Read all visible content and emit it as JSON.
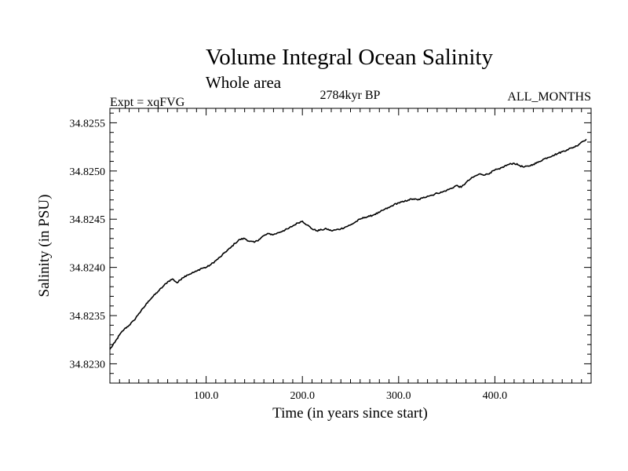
{
  "chart_data": {
    "type": "line",
    "title": "Volume Integral Ocean Salinity",
    "subtitle": "Whole area",
    "annotations": {
      "left": "Expt = xqFVG",
      "center": "2784kyr BP",
      "right": "ALL_MONTHS"
    },
    "xlabel": "Time (in years since start)",
    "ylabel": "Salinity (in PSU)",
    "xlim": [
      0,
      500
    ],
    "ylim": [
      34.8228,
      34.82565
    ],
    "x_tick_labels": [
      "100.0",
      "200.0",
      "300.0",
      "400.0"
    ],
    "x_tick_values": [
      100,
      200,
      300,
      400
    ],
    "y_tick_labels": [
      "34.8230",
      "34.8235",
      "34.8240",
      "34.8245",
      "34.8250",
      "34.8255"
    ],
    "y_tick_values": [
      34.823,
      34.8235,
      34.824,
      34.8245,
      34.825,
      34.8255
    ],
    "grid": false,
    "series": [
      {
        "name": "Salinity",
        "color": "#000000",
        "x": [
          0,
          5,
          10,
          15,
          20,
          25,
          30,
          35,
          40,
          45,
          50,
          55,
          60,
          65,
          70,
          75,
          80,
          85,
          90,
          95,
          100,
          105,
          110,
          115,
          120,
          125,
          130,
          135,
          140,
          145,
          150,
          155,
          160,
          165,
          170,
          175,
          180,
          185,
          190,
          195,
          200,
          205,
          210,
          215,
          220,
          225,
          230,
          235,
          240,
          245,
          250,
          255,
          260,
          265,
          270,
          275,
          280,
          285,
          290,
          295,
          300,
          305,
          310,
          315,
          320,
          325,
          330,
          335,
          340,
          345,
          350,
          355,
          360,
          365,
          370,
          375,
          380,
          385,
          390,
          395,
          400,
          405,
          410,
          415,
          420,
          425,
          430,
          435,
          440,
          445,
          450,
          455,
          460,
          465,
          470,
          475,
          480,
          485,
          490,
          495
        ],
        "y": [
          34.82315,
          34.82322,
          34.8233,
          34.82336,
          34.8234,
          34.82345,
          34.82352,
          34.82358,
          34.82365,
          34.8237,
          34.82375,
          34.8238,
          34.82385,
          34.82388,
          34.82384,
          34.82389,
          34.82392,
          34.82394,
          34.82396,
          34.82399,
          34.824,
          34.82403,
          34.82407,
          34.82411,
          34.82416,
          34.8242,
          34.82425,
          34.82429,
          34.8243,
          34.82427,
          34.82426,
          34.82429,
          34.82433,
          34.82435,
          34.82434,
          34.82436,
          34.82438,
          34.8244,
          34.82443,
          34.82446,
          34.82448,
          34.82444,
          34.8244,
          34.82438,
          34.82439,
          34.8244,
          34.82438,
          34.82439,
          34.8244,
          34.82442,
          34.82444,
          34.82447,
          34.8245,
          34.82452,
          34.82453,
          34.82455,
          34.82457,
          34.8246,
          34.82462,
          34.82465,
          34.82467,
          34.82468,
          34.8247,
          34.82471,
          34.8247,
          34.82472,
          34.82474,
          34.82475,
          34.82477,
          34.82478,
          34.8248,
          34.82482,
          34.82485,
          34.82483,
          34.82488,
          34.82492,
          34.82495,
          34.82497,
          34.82496,
          34.82498,
          34.82501,
          34.82502,
          34.82505,
          34.82507,
          34.82508,
          34.82506,
          34.82504,
          34.82505,
          34.82507,
          34.82509,
          34.82512,
          34.82514,
          34.82516,
          34.82518,
          34.8252,
          34.82522,
          34.82524,
          34.82526,
          34.8253,
          34.82533
        ]
      }
    ]
  }
}
